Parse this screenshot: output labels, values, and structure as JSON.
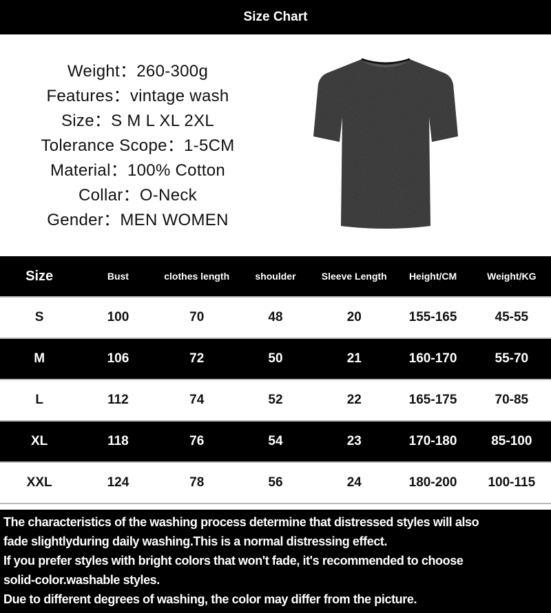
{
  "title": "Size Chart",
  "specs": [
    "Weight：260-300g",
    "Features：vintage wash",
    "Size：S M L XL 2XL",
    "Tolerance Scope：1-5CM",
    "Material：100% Cotton",
    "Collar：O-Neck",
    "Gender：MEN WOMEN"
  ],
  "table": {
    "headers": [
      "Size",
      "Bust",
      "clothes length",
      "shoulder",
      "Sleeve Length",
      "Height/CM",
      "Weight/KG"
    ],
    "rows": [
      [
        "S",
        "100",
        "70",
        "48",
        "20",
        "155-165",
        "45-55"
      ],
      [
        "M",
        "106",
        "72",
        "50",
        "21",
        "160-170",
        "55-70"
      ],
      [
        "L",
        "112",
        "74",
        "52",
        "22",
        "165-175",
        "70-85"
      ],
      [
        "XL",
        "118",
        "76",
        "54",
        "23",
        "170-180",
        "85-100"
      ],
      [
        "XXL",
        "124",
        "78",
        "56",
        "24",
        "180-200",
        "100-115"
      ]
    ]
  },
  "notes": [
    "The characteristics of the washing process determine that distressed styles will also",
    "fade slightlyduring daily washing.This is a normal distressing effect.",
    "If you prefer styles with bright colors that won't fade, it's recommended to choose",
    "solid-color.washable styles.",
    "Due to different degrees of washing, the color may differ from the picture."
  ],
  "colors": {
    "dark": "#000000",
    "light": "#ffffff",
    "shirt": "#2a2a2a"
  },
  "product_image": "black vintage wash t-shirt"
}
